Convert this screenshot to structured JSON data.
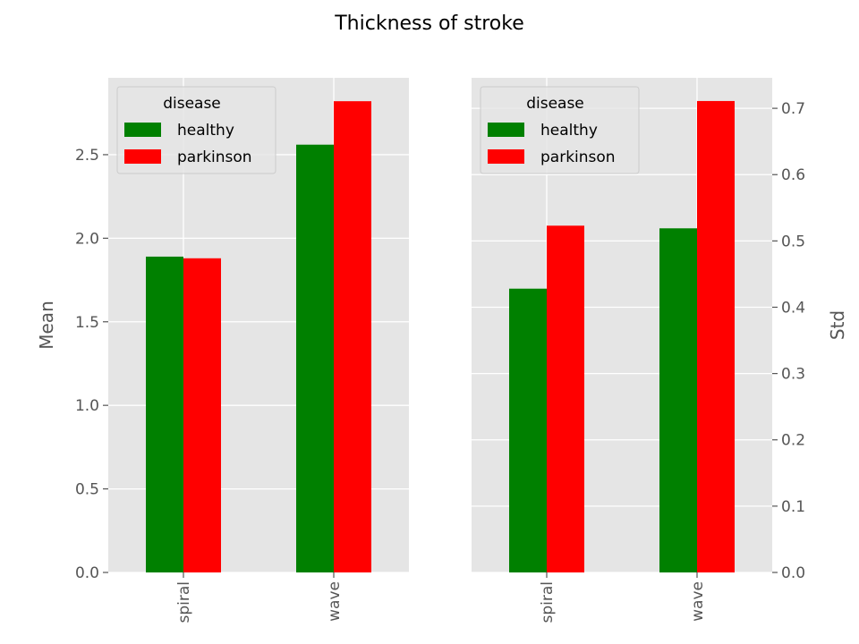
{
  "chart_data": {
    "title": "Thickness of stroke",
    "type": "bar",
    "legend_title": "disease",
    "legend_position": "top-left",
    "colors": {
      "healthy": "#008000",
      "parkinson": "#ff0000"
    },
    "panels": [
      {
        "id": "mean",
        "type": "bar",
        "categories": [
          "spiral",
          "wave"
        ],
        "series": [
          {
            "name": "healthy",
            "values": [
              1.89,
              2.56
            ]
          },
          {
            "name": "parkinson",
            "values": [
              1.88,
              2.82
            ]
          }
        ],
        "ylabel": "Mean",
        "ylabel_side": "left",
        "xlabel": "",
        "ylim": [
          0,
          2.96
        ],
        "yticks": [
          0.0,
          0.5,
          1.0,
          1.5,
          2.0,
          2.5
        ],
        "ytick_labels": [
          "0.0",
          "0.5",
          "1.0",
          "1.5",
          "2.0",
          "2.5"
        ],
        "grid": true
      },
      {
        "id": "std",
        "type": "bar",
        "categories": [
          "spiral",
          "wave"
        ],
        "series": [
          {
            "name": "healthy",
            "values": [
              0.428,
              0.519
            ]
          },
          {
            "name": "parkinson",
            "values": [
              0.523,
              0.711
            ]
          }
        ],
        "ylabel": "Std",
        "ylabel_side": "right",
        "xlabel": "",
        "ylim": [
          0,
          0.746
        ],
        "yticks": [
          0.0,
          0.1,
          0.2,
          0.3,
          0.4,
          0.5,
          0.6,
          0.7
        ],
        "ytick_labels": [
          "0.0",
          "0.1",
          "0.2",
          "0.3",
          "0.4",
          "0.5",
          "0.6",
          "0.7"
        ],
        "grid": true
      }
    ]
  }
}
